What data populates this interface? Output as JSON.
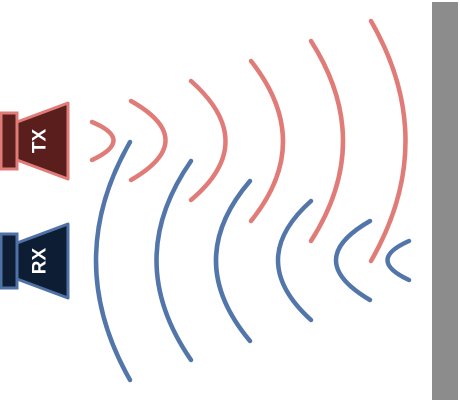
{
  "transmitter": {
    "label": "TX",
    "body_color": "#5a1f1c",
    "outline_color": "#e07b78"
  },
  "receiver": {
    "label": "RX",
    "body_color": "#0d1d33",
    "outline_color": "#4f71a6"
  },
  "waves": {
    "emitted_color": "#e07b78",
    "reflected_color": "#5276aa",
    "emitted_count": 6,
    "reflected_count": 6
  },
  "reflector": {
    "color": "#8c8c8c"
  }
}
